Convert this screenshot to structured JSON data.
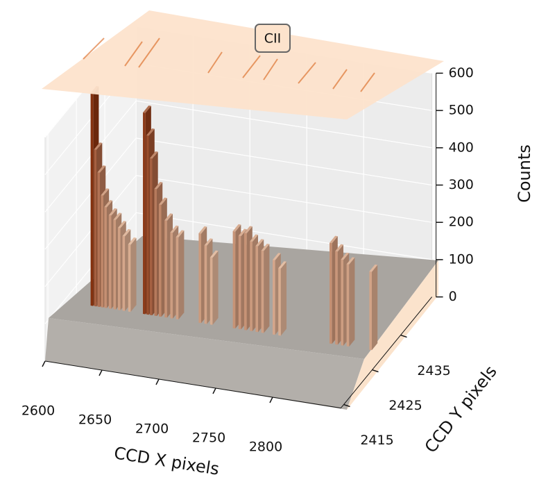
{
  "chart_data": {
    "type": "bar3d",
    "annotation": "CII",
    "x_label": "CCD X pixels",
    "y_label": "CCD Y pixels",
    "z_label": "Counts",
    "x": [
      2600,
      2603,
      2606,
      2609,
      2612,
      2616,
      2620,
      2624,
      2628,
      2633,
      2646,
      2649,
      2652,
      2656,
      2660,
      2665,
      2670,
      2675,
      2695,
      2700,
      2705,
      2725,
      2730,
      2735,
      2740,
      2745,
      2750,
      2760,
      2765,
      2810,
      2815,
      2820,
      2825,
      2845
    ],
    "y": [
      2430,
      2430,
      2430,
      2430,
      2430,
      2430,
      2430,
      2430,
      2430,
      2430,
      2430,
      2430,
      2430,
      2430,
      2430,
      2430,
      2430,
      2430,
      2430,
      2430,
      2430,
      2430,
      2430,
      2430,
      2430,
      2430,
      2430,
      2430,
      2430,
      2430,
      2430,
      2430,
      2430,
      2430
    ],
    "values": [
      570,
      420,
      360,
      300,
      270,
      250,
      240,
      220,
      200,
      180,
      540,
      480,
      420,
      340,
      300,
      260,
      230,
      220,
      240,
      210,
      180,
      260,
      250,
      260,
      240,
      230,
      220,
      200,
      180,
      270,
      250,
      230,
      220,
      210
    ],
    "xlim": [
      2600,
      2860
    ],
    "ylim": [
      2414,
      2446
    ],
    "zlim": [
      0,
      600
    ],
    "xticks": [
      2600,
      2650,
      2700,
      2750,
      2800
    ],
    "yticks": [
      2415,
      2425,
      2435
    ],
    "zticks": [
      0,
      100,
      200,
      300,
      400,
      500,
      600
    ],
    "grid": true
  }
}
